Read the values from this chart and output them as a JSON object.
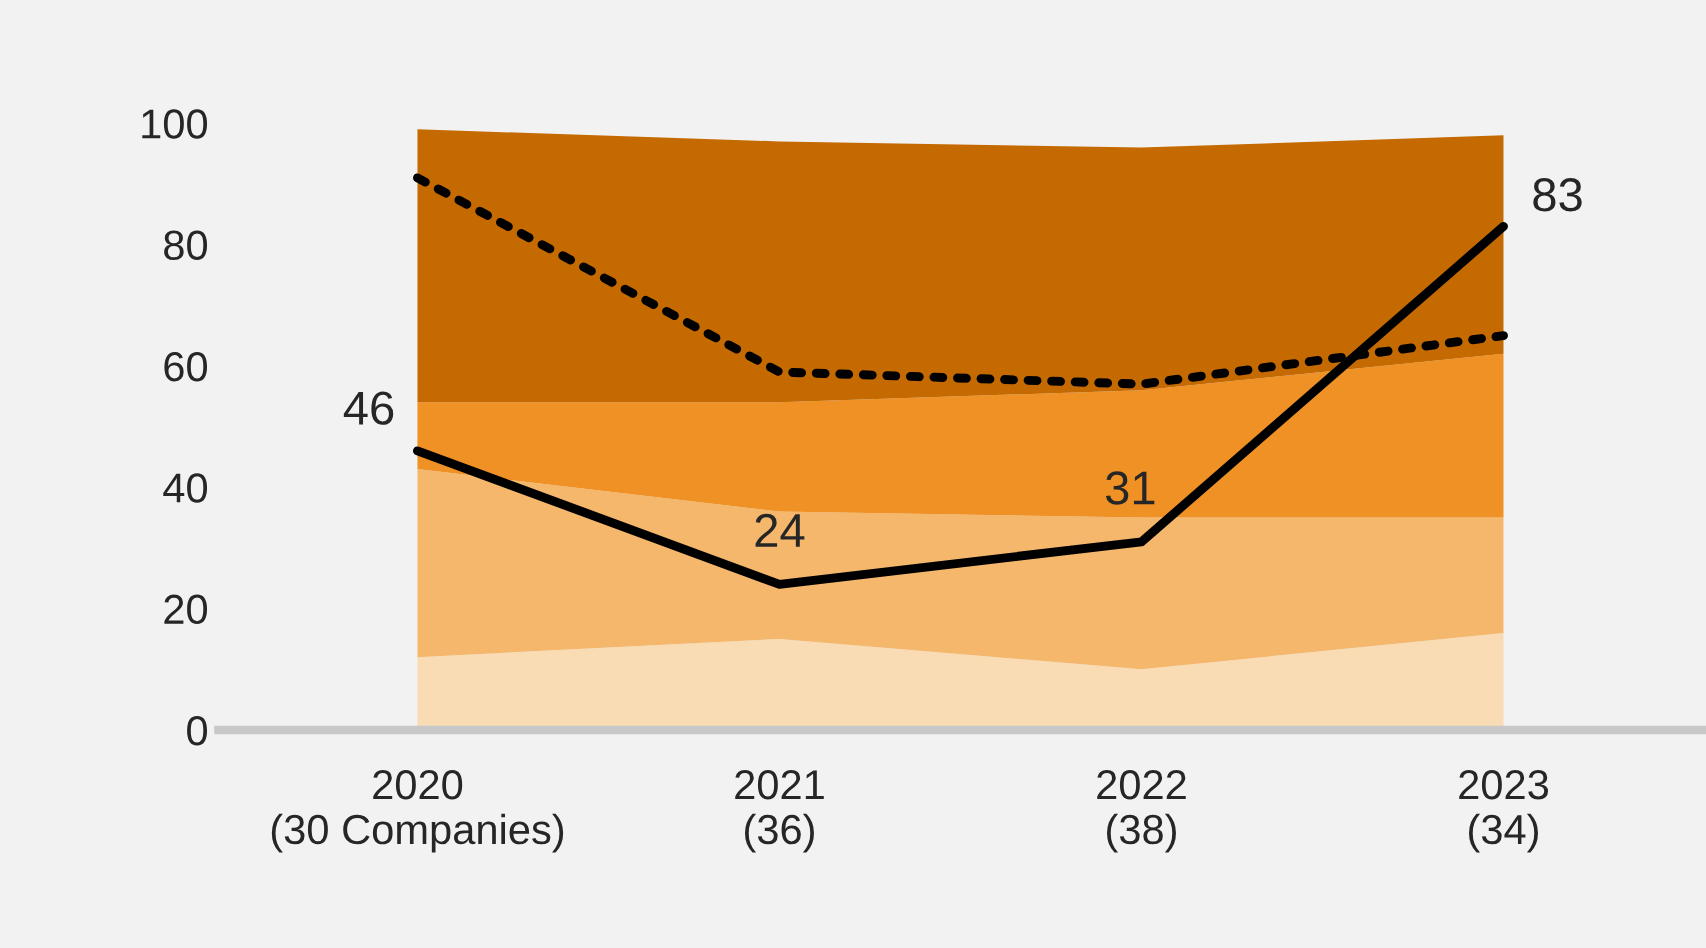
{
  "chart_data": {
    "type": "area",
    "stacked": true,
    "categories": [
      "2020\n(30 Companies)",
      "2021\n(36)",
      "2022\n(38)",
      "2023\n(34)"
    ],
    "series": [
      {
        "color": "#f9dbb4",
        "values": [
          12,
          15,
          10,
          16
        ]
      },
      {
        "color": "#f4b76c",
        "values": [
          31,
          21,
          25,
          19
        ]
      },
      {
        "color": "#ef9124",
        "values": [
          11,
          18,
          21,
          27
        ]
      },
      {
        "color": "#c46a00",
        "values": [
          45,
          43,
          40,
          36
        ]
      },
      {
        "type": "line",
        "color": "#000000",
        "line_style": "dotted",
        "values": [
          91,
          59,
          57,
          65
        ]
      },
      {
        "type": "line",
        "color": "#000000",
        "line_style": "solid",
        "values": [
          46,
          24,
          31,
          83
        ],
        "value_labels": [
          "46",
          "24",
          "31",
          "83"
        ]
      }
    ],
    "ylim": [
      0,
      100
    ],
    "yticks": [
      0,
      20,
      40,
      60,
      80,
      100
    ],
    "grid": false,
    "legend": false
  }
}
